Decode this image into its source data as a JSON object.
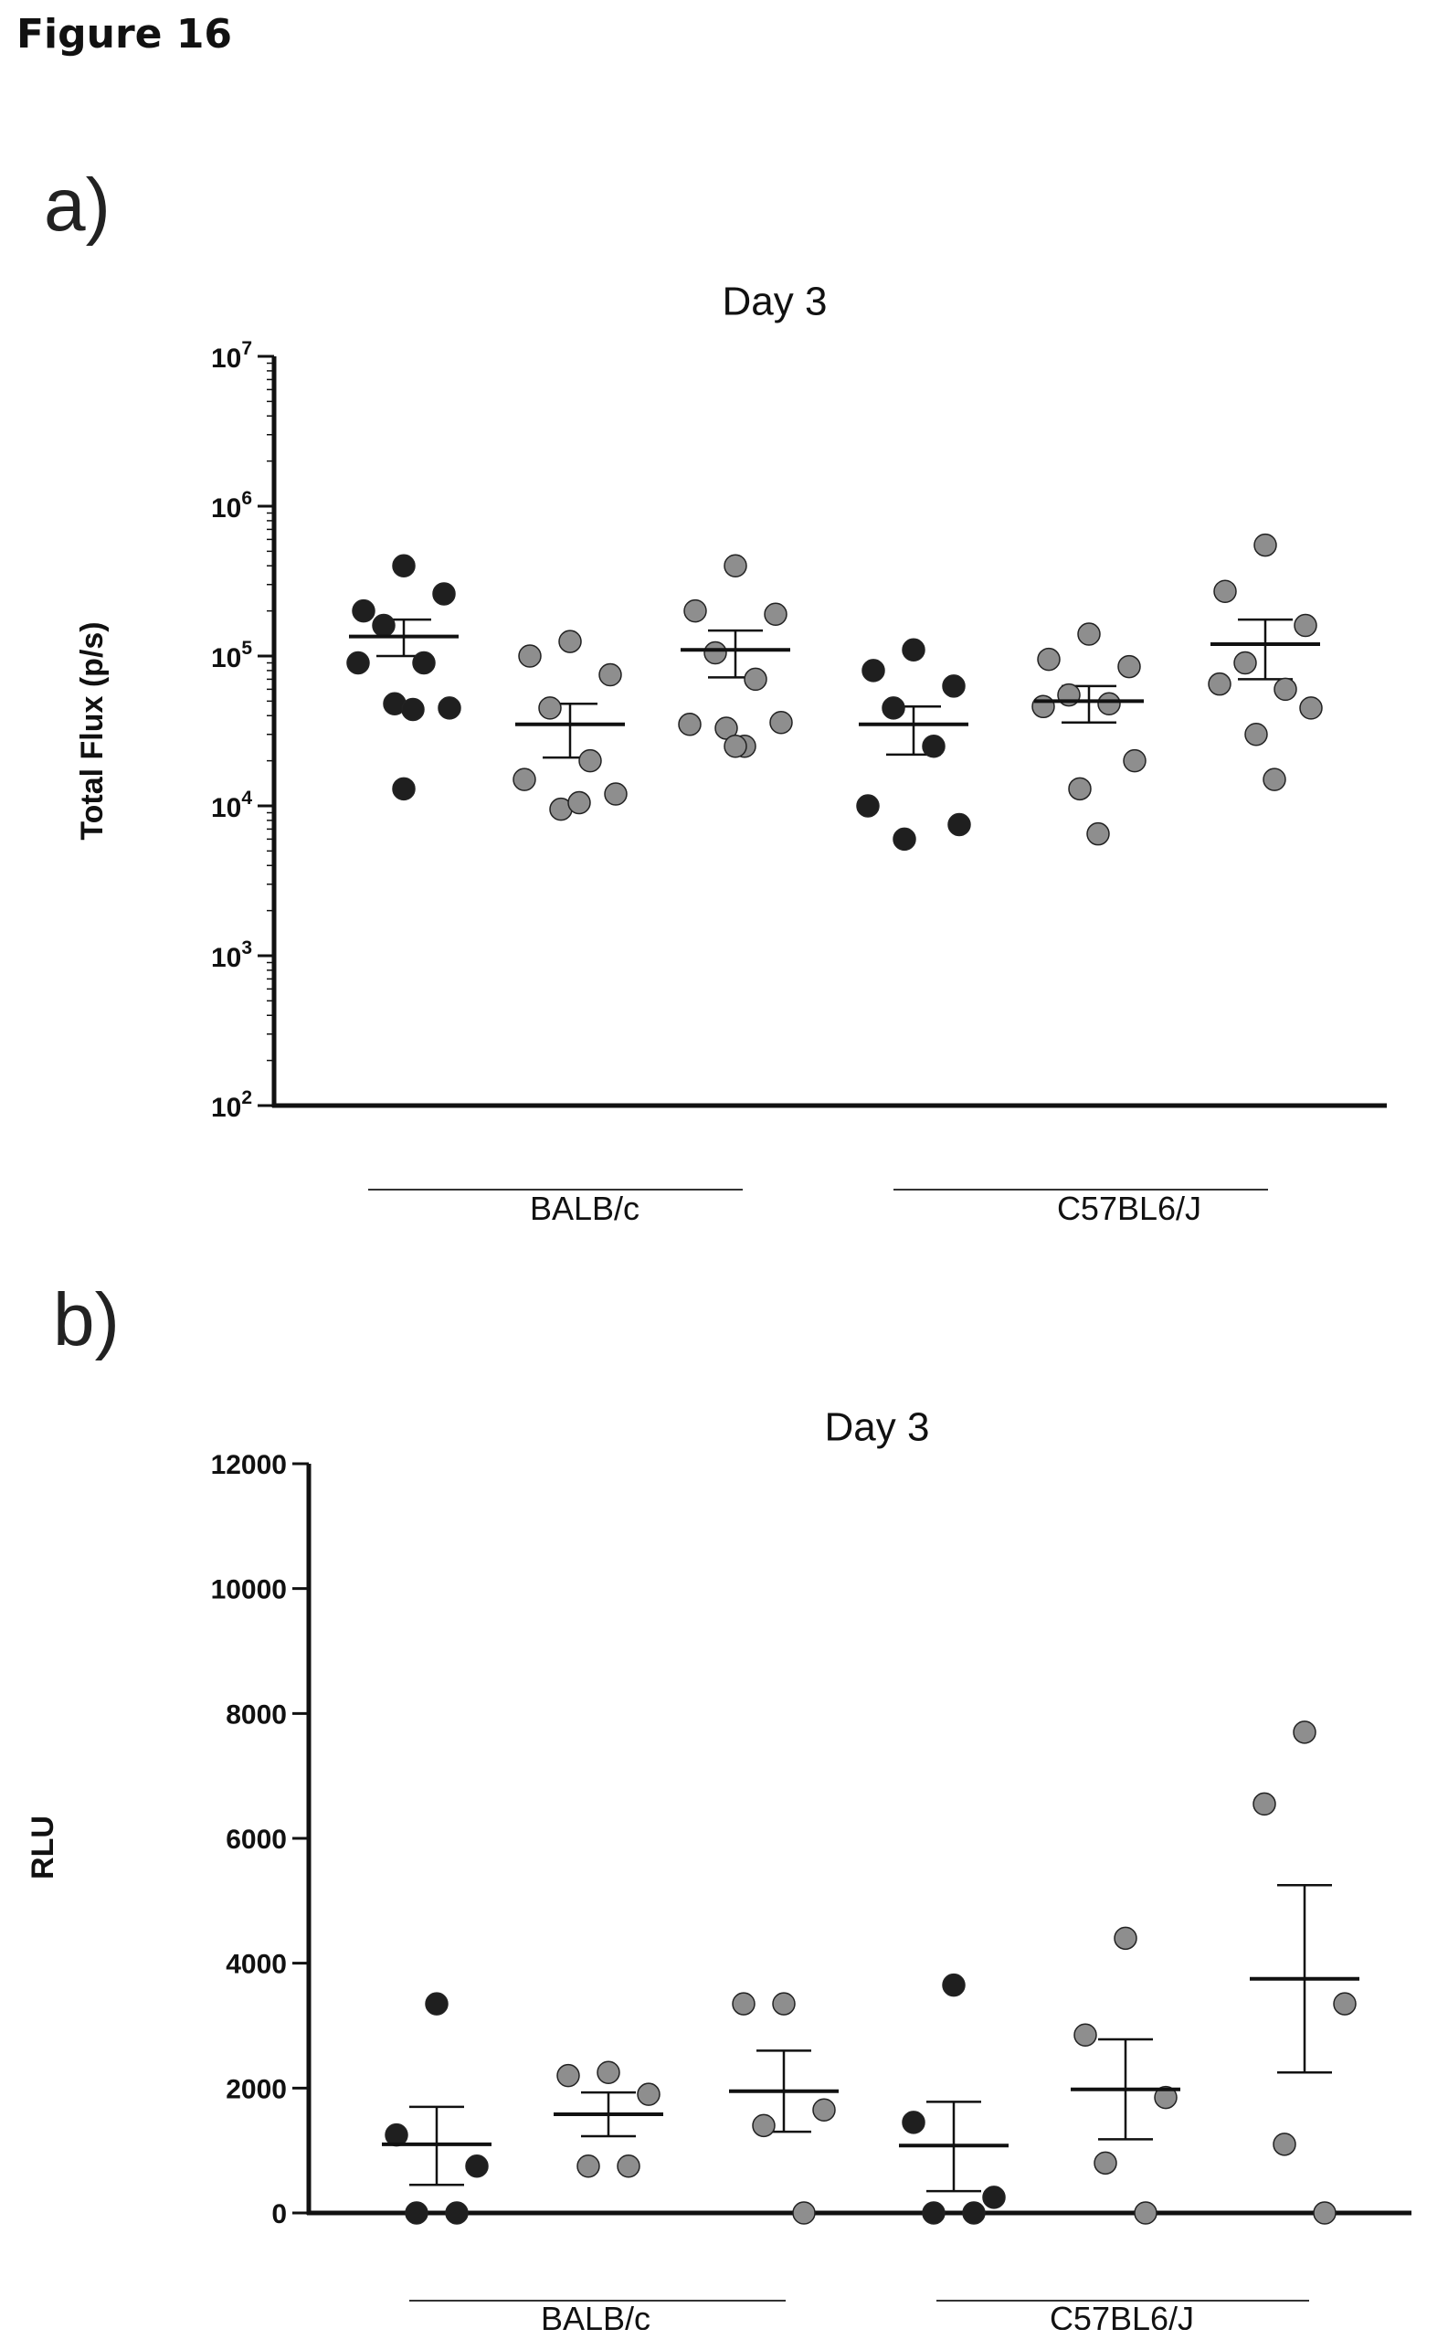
{
  "figure_title": "Figure 16",
  "panels": [
    "a)",
    "b)"
  ],
  "colors": {
    "black_group": "#1f1f1f",
    "grey_group": "#8e8e8e",
    "axis": "#111111"
  },
  "chart_data": [
    {
      "type": "scatter",
      "title": "Day 3",
      "ylabel": "Total Flux (p/s)",
      "yscale": "log",
      "ylim": [
        100,
        10000000
      ],
      "ytick_values": [
        100,
        1000,
        10000,
        100000,
        1000000,
        10000000
      ],
      "ytick_labels": [
        {
          "base": "10",
          "exp": "2"
        },
        {
          "base": "10",
          "exp": "3"
        },
        {
          "base": "10",
          "exp": "4"
        },
        {
          "base": "10",
          "exp": "5"
        },
        {
          "base": "10",
          "exp": "6"
        },
        {
          "base": "10",
          "exp": "7"
        }
      ],
      "group_labels": [
        "BALB/c",
        "C57BL6/J"
      ],
      "series": [
        {
          "group": "BALB/c",
          "color": "#1f1f1f",
          "values": [
            400000,
            200000,
            260000,
            160000,
            90000,
            90000,
            45000,
            48000,
            44000,
            13000
          ],
          "mean": 135000,
          "sem_low": 100000,
          "sem_high": 175000
        },
        {
          "group": "BALB/c",
          "color": "#8e8e8e",
          "values": [
            125000,
            100000,
            75000,
            45000,
            20000,
            15000,
            12000,
            9500,
            10500
          ],
          "mean": 35000,
          "sem_low": 21000,
          "sem_high": 48000
        },
        {
          "group": "BALB/c",
          "color": "#8e8e8e",
          "values": [
            400000,
            200000,
            190000,
            105000,
            70000,
            35000,
            36000,
            33000,
            25000,
            25000
          ],
          "mean": 110000,
          "sem_low": 72000,
          "sem_high": 148000
        },
        {
          "group": "C57BL6/J",
          "color": "#1f1f1f",
          "values": [
            110000,
            80000,
            63000,
            45000,
            25000,
            10000,
            7500,
            6000
          ],
          "mean": 35000,
          "sem_low": 22000,
          "sem_high": 46000
        },
        {
          "group": "C57BL6/J",
          "color": "#8e8e8e",
          "values": [
            140000,
            95000,
            85000,
            55000,
            48000,
            46000,
            20000,
            13000,
            6500
          ],
          "mean": 50000,
          "sem_low": 36000,
          "sem_high": 63000
        },
        {
          "group": "C57BL6/J",
          "color": "#8e8e8e",
          "values": [
            550000,
            270000,
            160000,
            90000,
            60000,
            65000,
            45000,
            30000,
            15000
          ],
          "mean": 120000,
          "sem_low": 70000,
          "sem_high": 175000
        }
      ]
    },
    {
      "type": "scatter",
      "title": "Day 3",
      "ylabel": "RLU",
      "yscale": "linear",
      "ylim": [
        0,
        12000
      ],
      "ytick_values": [
        0,
        2000,
        4000,
        6000,
        8000,
        10000,
        12000
      ],
      "ytick_labels": [
        "0",
        "2000",
        "4000",
        "6000",
        "8000",
        "10000",
        "12000"
      ],
      "group_labels": [
        "BALB/c",
        "C57BL6/J"
      ],
      "series": [
        {
          "group": "BALB/c",
          "color": "#1f1f1f",
          "values": [
            3350,
            1250,
            750,
            0,
            0
          ],
          "mean": 1100,
          "sem_low": 450,
          "sem_high": 1700
        },
        {
          "group": "BALB/c",
          "color": "#8e8e8e",
          "values": [
            2250,
            2200,
            1900,
            750,
            750
          ],
          "mean": 1580,
          "sem_low": 1230,
          "sem_high": 1930
        },
        {
          "group": "BALB/c",
          "color": "#8e8e8e",
          "values": [
            3350,
            3350,
            1650,
            1400,
            0
          ],
          "mean": 1950,
          "sem_low": 1300,
          "sem_high": 2600
        },
        {
          "group": "C57BL6/J",
          "color": "#1f1f1f",
          "values": [
            3650,
            1450,
            250,
            0,
            0
          ],
          "mean": 1080,
          "sem_low": 350,
          "sem_high": 1780
        },
        {
          "group": "C57BL6/J",
          "color": "#8e8e8e",
          "values": [
            4400,
            2850,
            1850,
            800,
            0
          ],
          "mean": 1980,
          "sem_low": 1180,
          "sem_high": 2780
        },
        {
          "group": "C57BL6/J",
          "color": "#8e8e8e",
          "values": [
            7700,
            6550,
            3350,
            1100,
            0
          ],
          "mean": 3750,
          "sem_low": 2250,
          "sem_high": 5250
        }
      ]
    }
  ]
}
